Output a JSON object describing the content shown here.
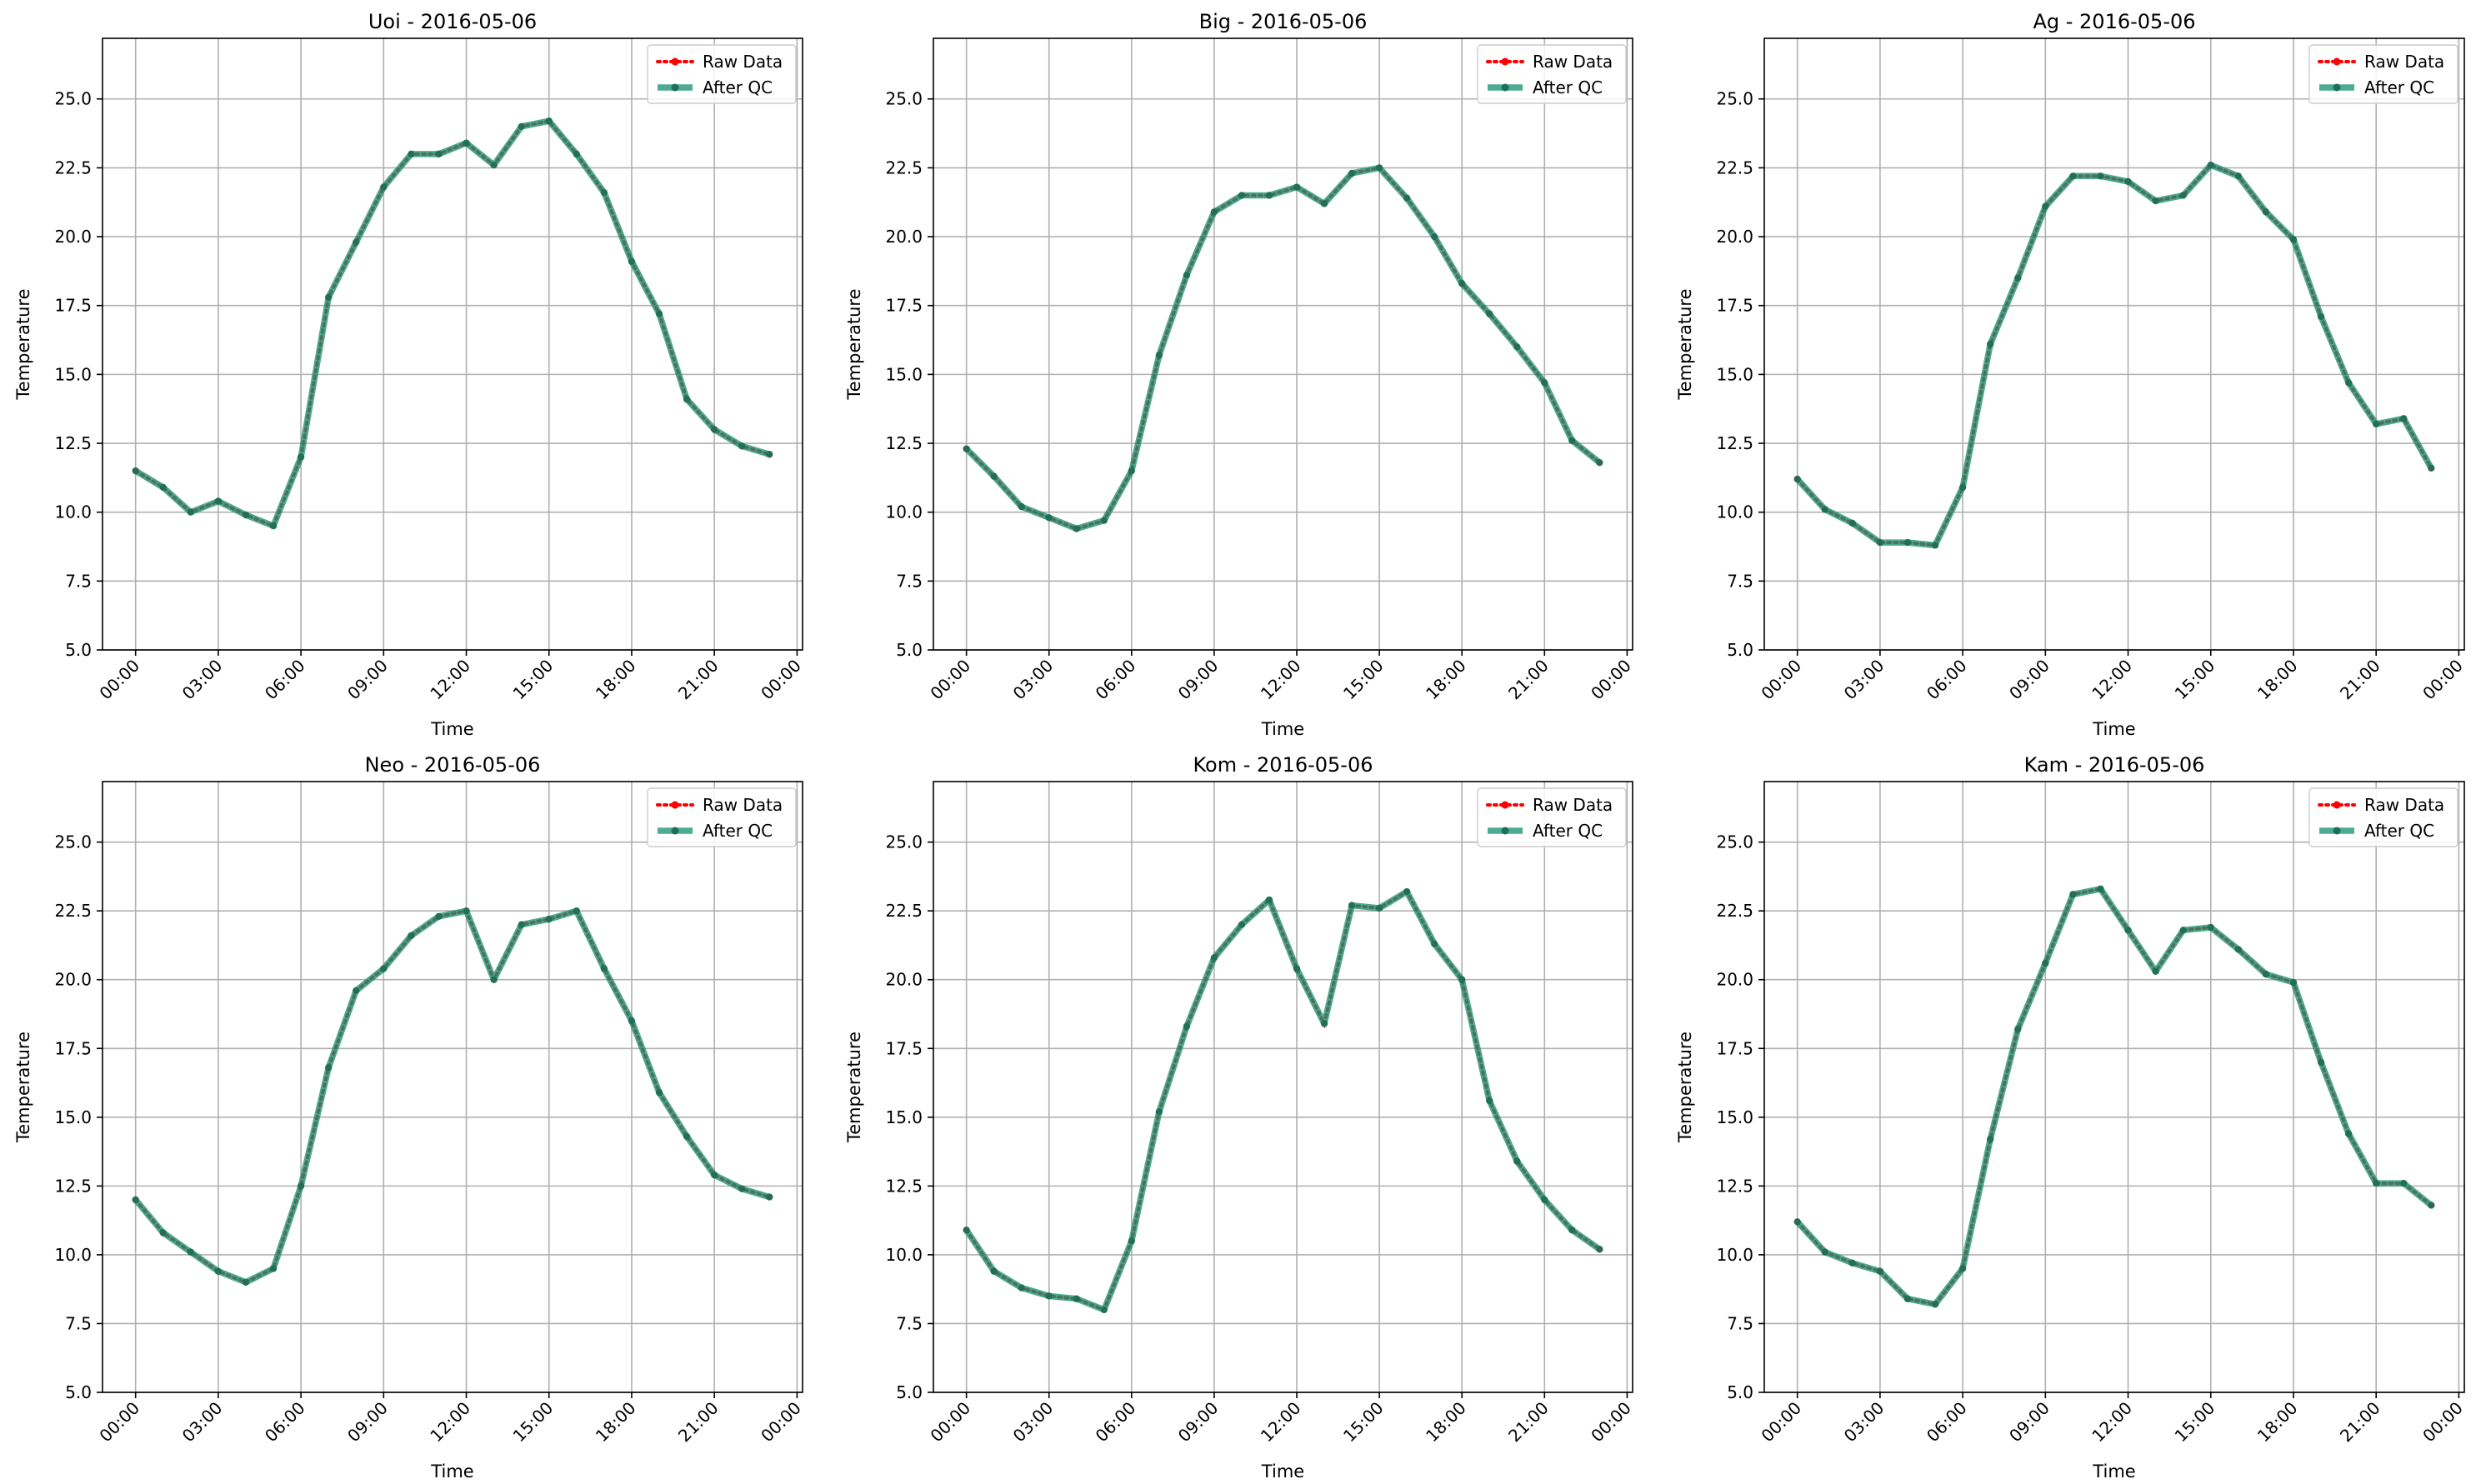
{
  "chart_data": [
    {
      "type": "line",
      "title": "Uoi - 2016-05-06",
      "xlabel": "Time",
      "ylabel": "Temperature",
      "ylim": [
        5.0,
        27.2
      ],
      "xlim": [
        "00:00",
        "00:00"
      ],
      "yticks": [
        "5.0",
        "7.5",
        "10.0",
        "12.5",
        "15.0",
        "17.5",
        "20.0",
        "22.5",
        "25.0"
      ],
      "xticks": [
        "00:00",
        "03:00",
        "06:00",
        "09:00",
        "12:00",
        "15:00",
        "18:00",
        "21:00",
        "00:00"
      ],
      "grid": true,
      "legend_position": "top-right",
      "x": [
        "00:00",
        "01:00",
        "02:00",
        "03:00",
        "04:00",
        "05:00",
        "06:00",
        "07:00",
        "08:00",
        "09:00",
        "10:00",
        "11:00",
        "12:00",
        "13:00",
        "14:00",
        "15:00",
        "16:00",
        "17:00",
        "18:00",
        "19:00",
        "20:00",
        "21:00",
        "22:00",
        "23:00"
      ],
      "series": [
        {
          "name": "Raw Data",
          "color": "#ff0000",
          "values": [
            11.5,
            10.9,
            10.0,
            10.4,
            9.9,
            9.5,
            12.0,
            17.8,
            19.8,
            21.8,
            23.0,
            23.0,
            23.4,
            22.6,
            24.0,
            24.2,
            23.0,
            21.6,
            19.1,
            17.2,
            14.1,
            13.0,
            12.4,
            12.1
          ]
        },
        {
          "name": "After QC",
          "color": "#1a9473",
          "values": [
            11.5,
            10.9,
            10.0,
            10.4,
            9.9,
            9.5,
            12.0,
            17.8,
            19.8,
            21.8,
            23.0,
            23.0,
            23.4,
            22.6,
            24.0,
            24.2,
            23.0,
            21.6,
            19.1,
            17.2,
            14.1,
            13.0,
            12.4,
            12.1
          ]
        }
      ]
    },
    {
      "type": "line",
      "title": "Big - 2016-05-06",
      "xlabel": "Time",
      "ylabel": "Temperature",
      "ylim": [
        5.0,
        27.2
      ],
      "xlim": [
        "00:00",
        "00:00"
      ],
      "yticks": [
        "5.0",
        "7.5",
        "10.0",
        "12.5",
        "15.0",
        "17.5",
        "20.0",
        "22.5",
        "25.0"
      ],
      "xticks": [
        "00:00",
        "03:00",
        "06:00",
        "09:00",
        "12:00",
        "15:00",
        "18:00",
        "21:00",
        "00:00"
      ],
      "grid": true,
      "legend_position": "top-right",
      "x": [
        "00:00",
        "01:00",
        "02:00",
        "03:00",
        "04:00",
        "05:00",
        "06:00",
        "07:00",
        "08:00",
        "09:00",
        "10:00",
        "11:00",
        "12:00",
        "13:00",
        "14:00",
        "15:00",
        "16:00",
        "17:00",
        "18:00",
        "19:00",
        "20:00",
        "21:00",
        "22:00",
        "23:00"
      ],
      "series": [
        {
          "name": "Raw Data",
          "color": "#ff0000",
          "values": [
            12.3,
            11.3,
            10.2,
            9.8,
            9.4,
            9.7,
            11.5,
            15.7,
            18.6,
            20.9,
            21.5,
            21.5,
            21.8,
            21.2,
            22.3,
            22.5,
            21.4,
            20.0,
            18.3,
            17.2,
            16.0,
            14.7,
            12.6,
            11.8
          ]
        },
        {
          "name": "After QC",
          "color": "#1a9473",
          "values": [
            12.3,
            11.3,
            10.2,
            9.8,
            9.4,
            9.7,
            11.5,
            15.7,
            18.6,
            20.9,
            21.5,
            21.5,
            21.8,
            21.2,
            22.3,
            22.5,
            21.4,
            20.0,
            18.3,
            17.2,
            16.0,
            14.7,
            12.6,
            11.8
          ]
        }
      ]
    },
    {
      "type": "line",
      "title": "Ag - 2016-05-06",
      "xlabel": "Time",
      "ylabel": "Temperature",
      "ylim": [
        5.0,
        27.2
      ],
      "xlim": [
        "00:00",
        "00:00"
      ],
      "yticks": [
        "5.0",
        "7.5",
        "10.0",
        "12.5",
        "15.0",
        "17.5",
        "20.0",
        "22.5",
        "25.0"
      ],
      "xticks": [
        "00:00",
        "03:00",
        "06:00",
        "09:00",
        "12:00",
        "15:00",
        "18:00",
        "21:00",
        "00:00"
      ],
      "grid": true,
      "legend_position": "top-right",
      "x": [
        "00:00",
        "01:00",
        "02:00",
        "03:00",
        "04:00",
        "05:00",
        "06:00",
        "07:00",
        "08:00",
        "09:00",
        "10:00",
        "11:00",
        "12:00",
        "13:00",
        "14:00",
        "15:00",
        "16:00",
        "17:00",
        "18:00",
        "19:00",
        "20:00",
        "21:00",
        "22:00",
        "23:00"
      ],
      "series": [
        {
          "name": "Raw Data",
          "color": "#ff0000",
          "values": [
            11.2,
            10.1,
            9.6,
            8.9,
            8.9,
            8.8,
            10.9,
            16.1,
            18.5,
            21.1,
            22.2,
            22.2,
            22.0,
            21.3,
            21.5,
            22.6,
            22.2,
            20.9,
            19.9,
            17.1,
            14.7,
            13.2,
            13.4,
            11.6
          ]
        },
        {
          "name": "After QC",
          "color": "#1a9473",
          "values": [
            11.2,
            10.1,
            9.6,
            8.9,
            8.9,
            8.8,
            10.9,
            16.1,
            18.5,
            21.1,
            22.2,
            22.2,
            22.0,
            21.3,
            21.5,
            22.6,
            22.2,
            20.9,
            19.9,
            17.1,
            14.7,
            13.2,
            13.4,
            11.6
          ]
        }
      ]
    },
    {
      "type": "line",
      "title": "Neo - 2016-05-06",
      "xlabel": "Time",
      "ylabel": "Temperature",
      "ylim": [
        5.0,
        27.2
      ],
      "xlim": [
        "00:00",
        "00:00"
      ],
      "yticks": [
        "5.0",
        "7.5",
        "10.0",
        "12.5",
        "15.0",
        "17.5",
        "20.0",
        "22.5",
        "25.0"
      ],
      "xticks": [
        "00:00",
        "03:00",
        "06:00",
        "09:00",
        "12:00",
        "15:00",
        "18:00",
        "21:00",
        "00:00"
      ],
      "grid": true,
      "legend_position": "top-right",
      "x": [
        "00:00",
        "01:00",
        "02:00",
        "03:00",
        "04:00",
        "05:00",
        "06:00",
        "07:00",
        "08:00",
        "09:00",
        "10:00",
        "11:00",
        "12:00",
        "13:00",
        "14:00",
        "15:00",
        "16:00",
        "17:00",
        "18:00",
        "19:00",
        "20:00",
        "21:00",
        "22:00",
        "23:00"
      ],
      "series": [
        {
          "name": "Raw Data",
          "color": "#ff0000",
          "values": [
            12.0,
            10.8,
            10.1,
            9.4,
            9.0,
            9.5,
            12.5,
            16.8,
            19.6,
            20.4,
            21.6,
            22.3,
            22.5,
            20.0,
            22.0,
            22.2,
            22.5,
            20.4,
            18.5,
            15.9,
            14.3,
            12.9,
            12.4,
            12.1
          ]
        },
        {
          "name": "After QC",
          "color": "#1a9473",
          "values": [
            12.0,
            10.8,
            10.1,
            9.4,
            9.0,
            9.5,
            12.5,
            16.8,
            19.6,
            20.4,
            21.6,
            22.3,
            22.5,
            20.0,
            22.0,
            22.2,
            22.5,
            20.4,
            18.5,
            15.9,
            14.3,
            12.9,
            12.4,
            12.1
          ]
        }
      ]
    },
    {
      "type": "line",
      "title": "Kom - 2016-05-06",
      "xlabel": "Time",
      "ylabel": "Temperature",
      "ylim": [
        5.0,
        27.2
      ],
      "xlim": [
        "00:00",
        "00:00"
      ],
      "yticks": [
        "5.0",
        "7.5",
        "10.0",
        "12.5",
        "15.0",
        "17.5",
        "20.0",
        "22.5",
        "25.0"
      ],
      "xticks": [
        "00:00",
        "03:00",
        "06:00",
        "09:00",
        "12:00",
        "15:00",
        "18:00",
        "21:00",
        "00:00"
      ],
      "grid": true,
      "legend_position": "top-right",
      "x": [
        "00:00",
        "01:00",
        "02:00",
        "03:00",
        "04:00",
        "05:00",
        "06:00",
        "07:00",
        "08:00",
        "09:00",
        "10:00",
        "11:00",
        "12:00",
        "13:00",
        "14:00",
        "15:00",
        "16:00",
        "17:00",
        "18:00",
        "19:00",
        "20:00",
        "21:00",
        "22:00",
        "23:00"
      ],
      "series": [
        {
          "name": "Raw Data",
          "color": "#ff0000",
          "values": [
            10.9,
            9.4,
            8.8,
            8.5,
            8.4,
            8.0,
            10.5,
            15.2,
            18.3,
            20.8,
            22.0,
            22.9,
            20.4,
            18.4,
            22.7,
            22.6,
            23.2,
            21.3,
            20.0,
            15.6,
            13.4,
            12.0,
            10.9,
            10.2
          ]
        },
        {
          "name": "After QC",
          "color": "#1a9473",
          "values": [
            10.9,
            9.4,
            8.8,
            8.5,
            8.4,
            8.0,
            10.5,
            15.2,
            18.3,
            20.8,
            22.0,
            22.9,
            20.4,
            18.4,
            22.7,
            22.6,
            23.2,
            21.3,
            20.0,
            15.6,
            13.4,
            12.0,
            10.9,
            10.2
          ]
        }
      ]
    },
    {
      "type": "line",
      "title": "Kam - 2016-05-06",
      "xlabel": "Time",
      "ylabel": "Temperature",
      "ylim": [
        5.0,
        27.2
      ],
      "xlim": [
        "00:00",
        "00:00"
      ],
      "yticks": [
        "5.0",
        "7.5",
        "10.0",
        "12.5",
        "15.0",
        "17.5",
        "20.0",
        "22.5",
        "25.0"
      ],
      "xticks": [
        "00:00",
        "03:00",
        "06:00",
        "09:00",
        "12:00",
        "15:00",
        "18:00",
        "21:00",
        "00:00"
      ],
      "grid": true,
      "legend_position": "top-right",
      "x": [
        "00:00",
        "01:00",
        "02:00",
        "03:00",
        "04:00",
        "05:00",
        "06:00",
        "07:00",
        "08:00",
        "09:00",
        "10:00",
        "11:00",
        "12:00",
        "13:00",
        "14:00",
        "15:00",
        "16:00",
        "17:00",
        "18:00",
        "19:00",
        "20:00",
        "21:00",
        "22:00",
        "23:00"
      ],
      "series": [
        {
          "name": "Raw Data",
          "color": "#ff0000",
          "values": [
            11.2,
            10.1,
            9.7,
            9.4,
            8.4,
            8.2,
            9.5,
            14.2,
            18.2,
            20.6,
            23.1,
            23.3,
            21.8,
            20.3,
            21.8,
            21.9,
            21.1,
            20.2,
            19.9,
            17.0,
            14.4,
            12.6,
            12.6,
            11.8
          ]
        },
        {
          "name": "After QC",
          "color": "#1a9473",
          "values": [
            11.2,
            10.1,
            9.7,
            9.4,
            8.4,
            8.2,
            9.5,
            14.2,
            18.2,
            20.6,
            23.1,
            23.3,
            21.8,
            20.3,
            21.8,
            21.9,
            21.1,
            20.2,
            19.9,
            17.0,
            14.4,
            12.6,
            12.6,
            11.8
          ]
        }
      ]
    }
  ]
}
